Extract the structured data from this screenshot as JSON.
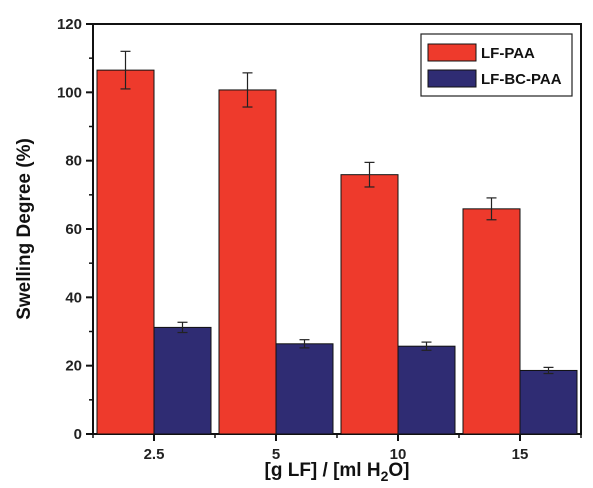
{
  "chart_data": {
    "type": "bar",
    "categories": [
      "2.5",
      "5",
      "10",
      "15"
    ],
    "series": [
      {
        "name": "LF-PAA",
        "color": "#ee3a2c",
        "values": [
          106.5,
          100.7,
          75.9,
          65.9
        ],
        "errors": [
          5.5,
          5.0,
          3.6,
          3.2
        ]
      },
      {
        "name": "LF-BC-PAA",
        "color": "#2f2c73",
        "values": [
          31.2,
          26.4,
          25.7,
          18.6
        ],
        "errors": [
          1.5,
          1.2,
          1.2,
          0.9
        ]
      }
    ],
    "xlabel_main": "[g LF] / [ml H",
    "xlabel_sub": "2",
    "xlabel_end": "O]",
    "ylabel": "Swelling Degree (%)",
    "ylim": [
      0,
      120
    ],
    "yticks": [
      "0",
      "20",
      "40",
      "60",
      "80",
      "100",
      "120"
    ],
    "legend_position": "top-right",
    "grid": false
  }
}
